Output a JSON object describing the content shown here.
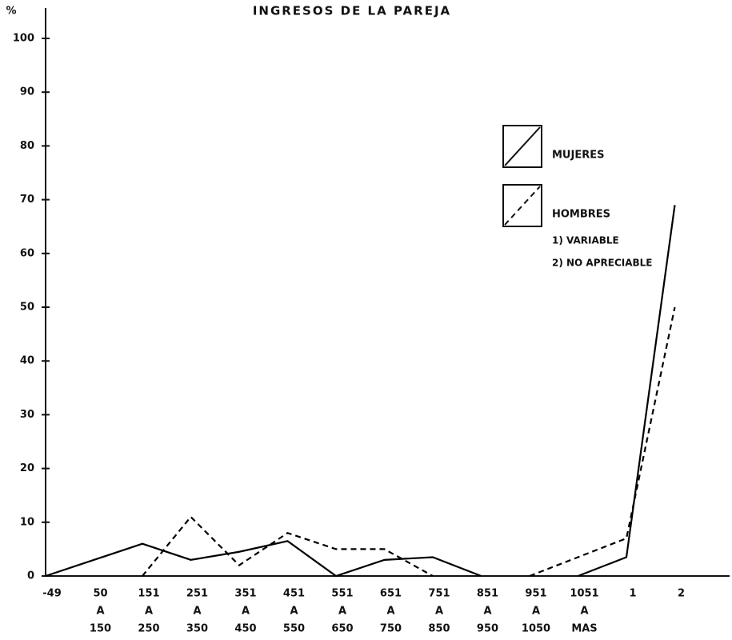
{
  "chart_data": {
    "type": "line",
    "title": "INGRESOS DE LA PAREJA",
    "y_label": "%",
    "categories": [
      [
        "-49"
      ],
      [
        "50",
        "A",
        "150"
      ],
      [
        "151",
        "A",
        "250"
      ],
      [
        "251",
        "A",
        "350"
      ],
      [
        "351",
        "A",
        "450"
      ],
      [
        "451",
        "A",
        "550"
      ],
      [
        "551",
        "A",
        "650"
      ],
      [
        "651",
        "A",
        "750"
      ],
      [
        "751",
        "A",
        "850"
      ],
      [
        "851",
        "A",
        "950"
      ],
      [
        "951",
        "A",
        "1050"
      ],
      [
        "1051",
        "A",
        "MAS"
      ],
      [
        "1"
      ],
      [
        "2"
      ]
    ],
    "series": [
      {
        "name": "MUJERES",
        "color": "#000000",
        "style": "solid",
        "values": [
          0,
          3,
          6,
          3,
          4.5,
          6.5,
          0,
          3,
          3.5,
          0,
          null,
          0,
          3.5,
          69
        ]
      },
      {
        "name": "HOMBRES",
        "color": "#000000",
        "style": "dashed",
        "values": [
          null,
          null,
          0,
          11,
          2,
          8,
          5,
          5,
          0,
          null,
          0,
          3.5,
          7,
          50
        ]
      }
    ],
    "annotations": [
      "1) VARIABLE",
      "2) NO APRECIABLE"
    ],
    "ylim": [
      0,
      100
    ],
    "yticks": [
      0,
      10,
      20,
      30,
      40,
      50,
      60,
      70,
      80,
      90,
      100
    ],
    "grid": false
  }
}
